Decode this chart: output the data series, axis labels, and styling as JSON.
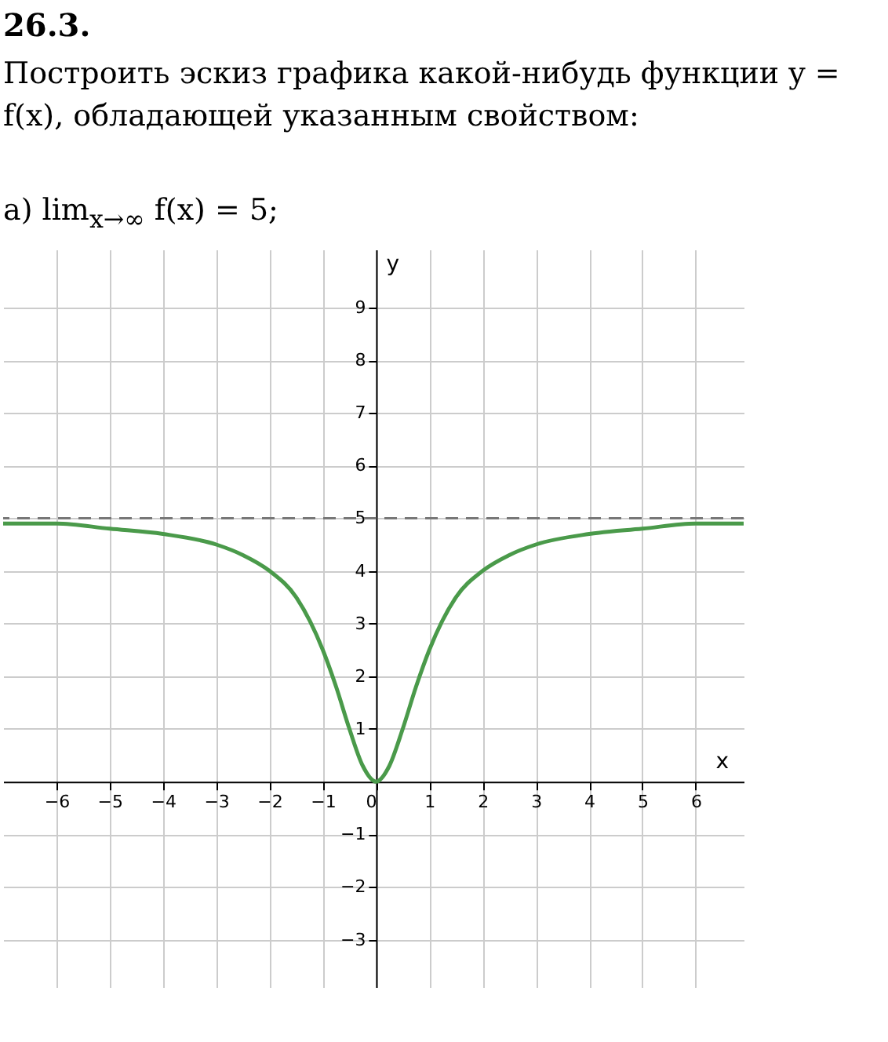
{
  "chart_data": {
    "type": "line",
    "title": "26.3.",
    "subtitle": "Построить эскиз графика какой-нибудь функции y = f(x), обладающей указанным свойством:",
    "annotations": [
      "а) lim$_{x→∞}$ f(x) = 5;"
    ],
    "xlabel": "x",
    "ylabel": "y",
    "series": [
      {
        "color": "#4a9a4a",
        "x": [
          -7,
          -6,
          -5,
          -4,
          -3,
          -2.5,
          -2,
          -1.5,
          -1,
          -0.75,
          -0.5,
          -0.25,
          0,
          0.25,
          0.5,
          0.75,
          1,
          1.5,
          2,
          2.5,
          3,
          4,
          5,
          6,
          6.9
        ],
        "values": [
          4.9,
          4.9,
          4.8,
          4.7,
          4.5,
          4.3,
          4.0,
          3.5,
          2.5,
          1.8,
          1.0,
          0.3,
          0,
          0.3,
          1.0,
          1.8,
          2.5,
          3.5,
          4.0,
          4.3,
          4.5,
          4.7,
          4.8,
          4.9,
          4.9
        ]
      }
    ],
    "xlim": [
      -7,
      6.9
    ],
    "ylim": [
      -3.9,
      10.1
    ],
    "xticks": [
      -6,
      -5,
      -4,
      -3,
      -2,
      -1,
      0,
      1,
      2,
      3,
      4,
      5,
      6
    ],
    "yticks": [
      -3,
      -2,
      -1,
      1,
      2,
      3,
      4,
      5,
      6,
      7,
      8,
      9
    ],
    "grid": true,
    "marker": "none",
    "line_style": "solid",
    "ref_lines": [
      {
        "axis": "y",
        "value": 5,
        "color": "#777777",
        "line_style": "dashed"
      }
    ]
  }
}
